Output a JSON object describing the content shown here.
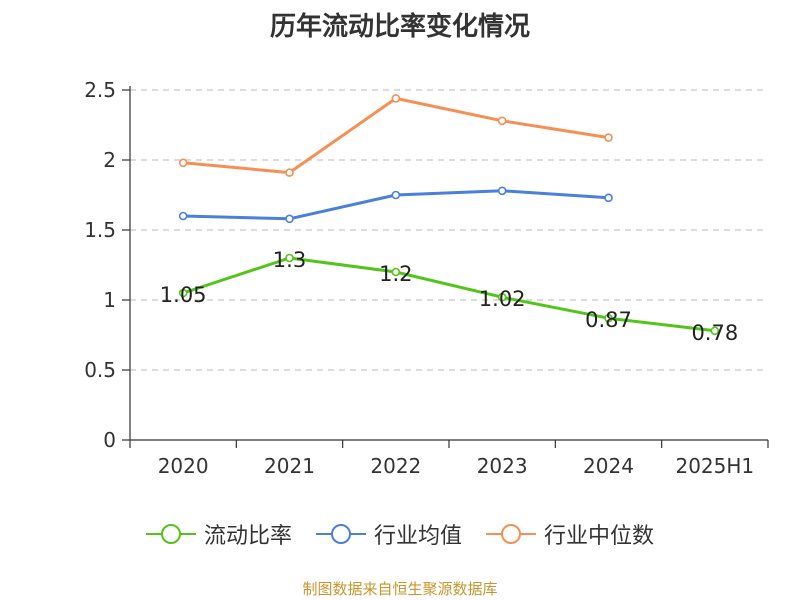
{
  "chart_data": {
    "type": "line",
    "title": "历年流动比率变化情况",
    "categories": [
      "2020",
      "2021",
      "2022",
      "2023",
      "2024",
      "2025H1"
    ],
    "ylim": [
      0,
      2.5
    ],
    "yticks": [
      "0",
      "0.5",
      "1",
      "1.5",
      "2",
      "2.5"
    ],
    "grid": true,
    "legend_position": "bottom",
    "series": [
      {
        "name": "流动比率",
        "color": "#52c41a",
        "values": [
          1.05,
          1.3,
          1.2,
          1.02,
          0.87,
          0.78
        ],
        "labels": [
          "1.05",
          "1.3",
          "1.2",
          "1.02",
          "0.87",
          "0.78"
        ]
      },
      {
        "name": "行业均值",
        "color": "#4a7fdb",
        "values": [
          1.6,
          1.58,
          1.75,
          1.78,
          1.73,
          null
        ]
      },
      {
        "name": "行业中位数",
        "color": "#f58f55",
        "values": [
          1.98,
          1.91,
          2.44,
          2.28,
          2.16,
          null
        ]
      }
    ]
  },
  "source_text": "制图数据来自恒生聚源数据库"
}
